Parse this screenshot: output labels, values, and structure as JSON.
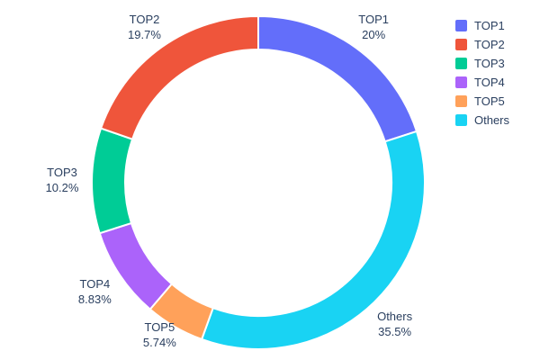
{
  "chart_data": {
    "type": "pie",
    "subtype": "donut",
    "hole": 0.8,
    "title": "",
    "background": "#ffffff",
    "text_color": "#2a3f5f",
    "labels_outside": true,
    "start_angle_deg": 0,
    "slice_order_clockwise": [
      "TOP1",
      "Others",
      "TOP5",
      "TOP4",
      "TOP3",
      "TOP2"
    ],
    "series": [
      {
        "name": "TOP1",
        "value": 20,
        "percent_label": "20%",
        "color": "#636EFA"
      },
      {
        "name": "TOP2",
        "value": 19.7,
        "percent_label": "19.7%",
        "color": "#EF553B"
      },
      {
        "name": "TOP3",
        "value": 10.2,
        "percent_label": "10.2%",
        "color": "#00CC96"
      },
      {
        "name": "TOP4",
        "value": 8.83,
        "percent_label": "8.83%",
        "color": "#AB63FA"
      },
      {
        "name": "TOP5",
        "value": 5.74,
        "percent_label": "5.74%",
        "color": "#FFA15A"
      },
      {
        "name": "Others",
        "value": 35.5,
        "percent_label": "35.5%",
        "color": "#19D3F3"
      }
    ],
    "legend": {
      "position": "top-right",
      "entries": [
        "TOP1",
        "TOP2",
        "TOP3",
        "TOP4",
        "TOP5",
        "Others"
      ]
    }
  }
}
